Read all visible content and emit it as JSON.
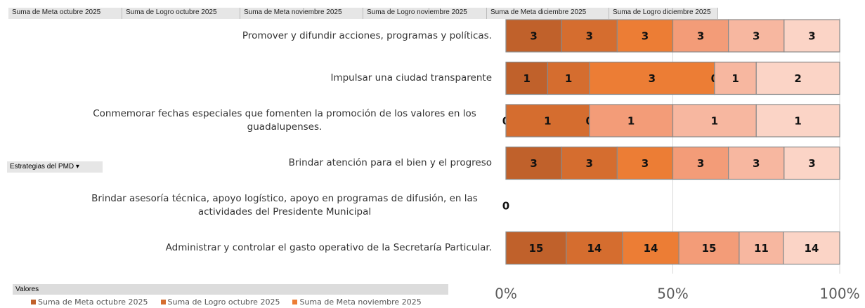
{
  "chart_data": {
    "type": "bar100h",
    "pivot_field": "Estrategias del PMD",
    "values_label": "Valores",
    "categories": [
      "Promover y difundir acciones, programas y políticas.",
      "Impulsar una ciudad transparente",
      "Conmemorar fechas especiales que fomenten la promoción de los valores en los guadalupenses.",
      "Brindar atención para el bien y el progreso",
      "Brindar asesoría técnica, apoyo logístico, apoyo en programas de difusión, en las actividades del Presidente Municipal",
      "Administrar y controlar el gasto operativo de la Secretaría Particular."
    ],
    "series": [
      {
        "name": "Suma de Meta octubre 2025",
        "color": "#c0612b",
        "values": [
          3,
          1,
          0,
          3,
          0,
          15
        ]
      },
      {
        "name": "Suma de Logro octubre 2025",
        "color": "#d56d2f",
        "values": [
          3,
          1,
          1,
          3,
          null,
          14
        ]
      },
      {
        "name": "Suma de Meta noviembre 2025",
        "color": "#ec7d35",
        "values": [
          3,
          3,
          0,
          3,
          null,
          14
        ]
      },
      {
        "name": "Suma de Logro noviembre 2025",
        "color": "#f39c78",
        "values": [
          3,
          0,
          1,
          3,
          null,
          15
        ]
      },
      {
        "name": "Suma de Meta diciembre 2025",
        "color": "#f7b7a0",
        "values": [
          3,
          1,
          1,
          3,
          null,
          11
        ]
      },
      {
        "name": "Suma de Logro diciembre 2025",
        "color": "#fbd4c6",
        "values": [
          3,
          2,
          1,
          3,
          null,
          14
        ]
      }
    ],
    "legend_shown": 3,
    "xlim": [
      0,
      100
    ],
    "xticks": [
      {
        "value": 0,
        "label": "0%"
      },
      {
        "value": 50,
        "label": "50%"
      },
      {
        "value": 100,
        "label": "100%"
      }
    ],
    "grid": true
  }
}
